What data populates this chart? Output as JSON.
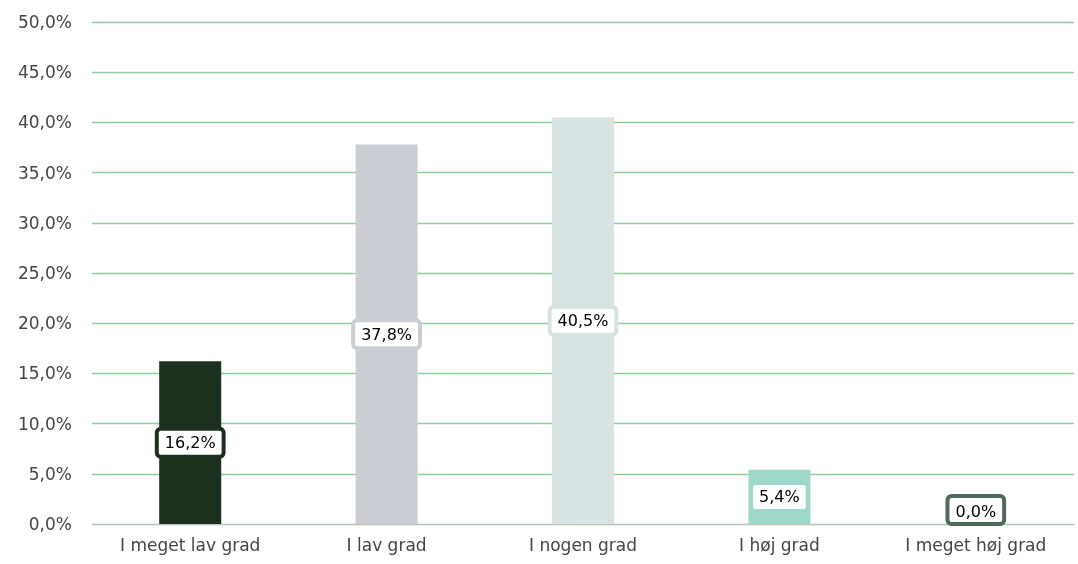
{
  "chart_data": {
    "type": "bar",
    "categories": [
      "I meget lav grad",
      "I lav grad",
      "I nogen grad",
      "I høj grad",
      "I meget høj grad"
    ],
    "values": [
      16.2,
      37.8,
      40.5,
      5.4,
      0.0
    ],
    "colors": [
      "#1b301d",
      "#c9cdd4",
      "#d5e3e2",
      "#9ed8ca",
      "#4d6b5b"
    ],
    "value_labels": [
      "16,2%",
      "37,8%",
      "40,5%",
      "5,4%",
      "0,0%"
    ],
    "ylim": [
      0,
      50
    ],
    "yticks": [
      {
        "value": 0,
        "label": "0,0%"
      },
      {
        "value": 5,
        "label": "5,0%"
      },
      {
        "value": 10,
        "label": "10,0%"
      },
      {
        "value": 15,
        "label": "15,0%"
      },
      {
        "value": 20,
        "label": "20,0%"
      },
      {
        "value": 25,
        "label": "25,0%"
      },
      {
        "value": 30,
        "label": "30,0%"
      },
      {
        "value": 35,
        "label": "35,0%"
      },
      {
        "value": 40,
        "label": "40,0%"
      },
      {
        "value": 45,
        "label": "45,0%"
      },
      {
        "value": 50,
        "label": "50,0%"
      }
    ],
    "grid": "y"
  }
}
